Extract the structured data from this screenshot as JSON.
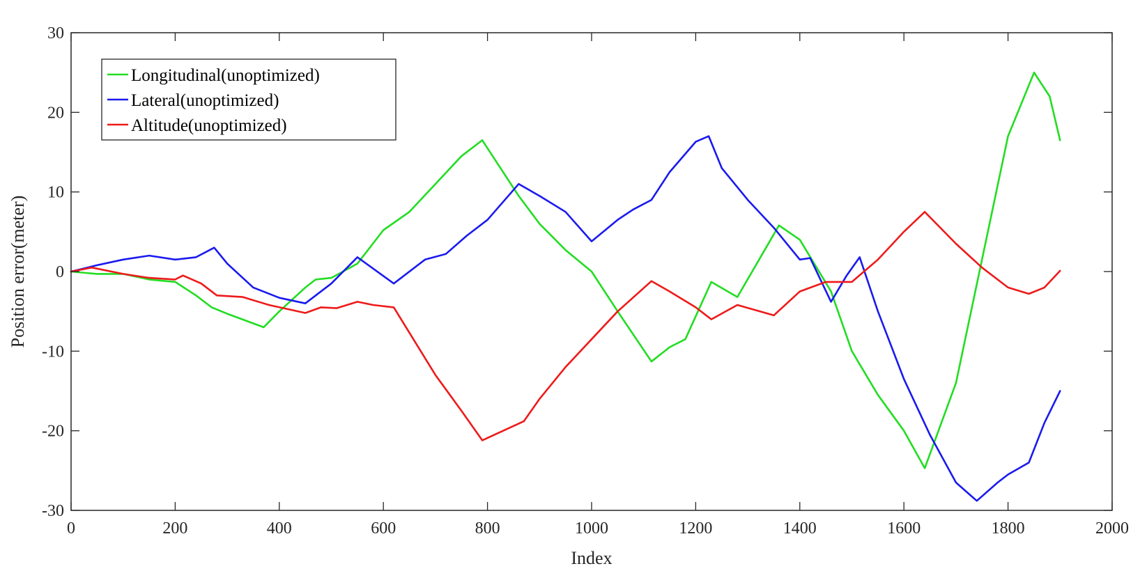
{
  "chart_data": {
    "type": "line",
    "title": "",
    "xlabel": "Index",
    "ylabel": "Position error(meter)",
    "xlim": [
      0,
      2000
    ],
    "ylim": [
      -30,
      30
    ],
    "xticks": [
      0,
      200,
      400,
      600,
      800,
      1000,
      1200,
      1400,
      1600,
      1800,
      2000
    ],
    "yticks": [
      -30,
      -20,
      -10,
      0,
      10,
      20,
      30
    ],
    "xtick_labels": [
      "0",
      "200",
      "400",
      "600",
      "800",
      "1000",
      "1200",
      "1400",
      "1600",
      "1800",
      "2000"
    ],
    "ytick_labels": [
      "-30",
      "-20",
      "-10",
      "0",
      "10",
      "20",
      "30"
    ],
    "grid": false,
    "legend_position": "top-left",
    "series": [
      {
        "name": "Longitudinal(unoptimized)",
        "color": "#22dd22",
        "x": [
          0,
          50,
          100,
          150,
          200,
          240,
          270,
          300,
          370,
          400,
          450,
          470,
          500,
          550,
          600,
          650,
          700,
          750,
          790,
          820,
          860,
          900,
          950,
          1000,
          1050,
          1115,
          1150,
          1180,
          1230,
          1280,
          1360,
          1400,
          1460,
          1500,
          1550,
          1600,
          1640,
          1700,
          1800,
          1850,
          1880,
          1900
        ],
        "y": [
          0,
          -0.3,
          -0.3,
          -1.0,
          -1.3,
          -3.0,
          -4.5,
          -5.3,
          -7.0,
          -5.0,
          -2.0,
          -1.0,
          -0.8,
          1.0,
          5.2,
          7.5,
          11.0,
          14.5,
          16.5,
          13.5,
          9.5,
          6.0,
          2.7,
          0.0,
          -5.0,
          -11.3,
          -9.5,
          -8.5,
          -1.3,
          -3.2,
          5.8,
          4.0,
          -2.5,
          -10.0,
          -15.5,
          -20.0,
          -24.7,
          -14.0,
          17.0,
          25.0,
          22.0,
          16.5
        ]
      },
      {
        "name": "Lateral(unoptimized)",
        "color": "#1a1aee",
        "x": [
          0,
          50,
          100,
          150,
          200,
          240,
          275,
          300,
          350,
          400,
          450,
          500,
          550,
          620,
          680,
          720,
          760,
          800,
          860,
          900,
          950,
          1000,
          1050,
          1080,
          1115,
          1150,
          1200,
          1225,
          1250,
          1300,
          1350,
          1400,
          1420,
          1460,
          1490,
          1515,
          1550,
          1600,
          1650,
          1700,
          1740,
          1780,
          1800,
          1840,
          1870,
          1900
        ],
        "y": [
          0,
          0.8,
          1.5,
          2.0,
          1.5,
          1.8,
          3.0,
          1.0,
          -2.0,
          -3.3,
          -4.0,
          -1.5,
          1.8,
          -1.5,
          1.5,
          2.2,
          4.5,
          6.5,
          11.0,
          9.5,
          7.5,
          3.8,
          6.5,
          7.8,
          9.0,
          12.5,
          16.3,
          17.0,
          13.0,
          9.0,
          5.5,
          1.5,
          1.7,
          -3.8,
          -0.5,
          1.8,
          -5.0,
          -13.5,
          -20.5,
          -26.5,
          -28.8,
          -26.5,
          -25.5,
          -24.0,
          -19.0,
          -15.0
        ]
      },
      {
        "name": "Altitude(unoptimized)",
        "color": "#ee1a1a",
        "x": [
          0,
          40,
          100,
          150,
          200,
          215,
          250,
          280,
          330,
          380,
          450,
          480,
          510,
          550,
          580,
          620,
          700,
          750,
          790,
          830,
          870,
          900,
          950,
          1000,
          1050,
          1115,
          1150,
          1200,
          1230,
          1280,
          1350,
          1400,
          1450,
          1500,
          1550,
          1600,
          1640,
          1700,
          1750,
          1800,
          1840,
          1870,
          1900
        ],
        "y": [
          0,
          0.5,
          -0.3,
          -0.8,
          -1.0,
          -0.5,
          -1.5,
          -3.0,
          -3.2,
          -4.2,
          -5.2,
          -4.5,
          -4.6,
          -3.8,
          -4.2,
          -4.5,
          -13.0,
          -17.5,
          -21.2,
          -20.0,
          -18.8,
          -16.0,
          -12.0,
          -8.5,
          -5.0,
          -1.2,
          -2.5,
          -4.5,
          -6.0,
          -4.2,
          -5.5,
          -2.5,
          -1.3,
          -1.3,
          1.5,
          5.0,
          7.5,
          3.5,
          0.5,
          -2.0,
          -2.8,
          -2.0,
          0.1
        ]
      }
    ]
  }
}
